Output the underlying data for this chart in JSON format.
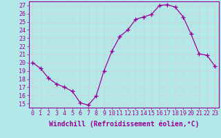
{
  "x": [
    0,
    1,
    2,
    3,
    4,
    5,
    6,
    7,
    8,
    9,
    10,
    11,
    12,
    13,
    14,
    15,
    16,
    17,
    18,
    19,
    20,
    21,
    22,
    23
  ],
  "y": [
    20,
    19.3,
    18.1,
    17.4,
    17.0,
    16.5,
    15.1,
    14.8,
    15.9,
    19.0,
    21.4,
    23.2,
    24.0,
    25.3,
    25.6,
    25.9,
    27.0,
    27.1,
    26.8,
    25.6,
    23.5,
    21.1,
    20.9,
    19.6
  ],
  "line_color": "#990099",
  "marker": "+",
  "marker_size": 4,
  "background_color": "#b3e8e8",
  "grid_color": "#d0d0d0",
  "ylim": [
    14.5,
    27.5
  ],
  "yticks": [
    15,
    16,
    17,
    18,
    19,
    20,
    21,
    22,
    23,
    24,
    25,
    26,
    27
  ],
  "xticks": [
    0,
    1,
    2,
    3,
    4,
    5,
    6,
    7,
    8,
    9,
    10,
    11,
    12,
    13,
    14,
    15,
    16,
    17,
    18,
    19,
    20,
    21,
    22,
    23
  ],
  "xlabel": "Windchill (Refroidissement éolien,°C)",
  "xlabel_color": "#990099",
  "tick_color": "#990099",
  "axis_color": "#990099",
  "font_size": 6,
  "xlabel_font_size": 7
}
